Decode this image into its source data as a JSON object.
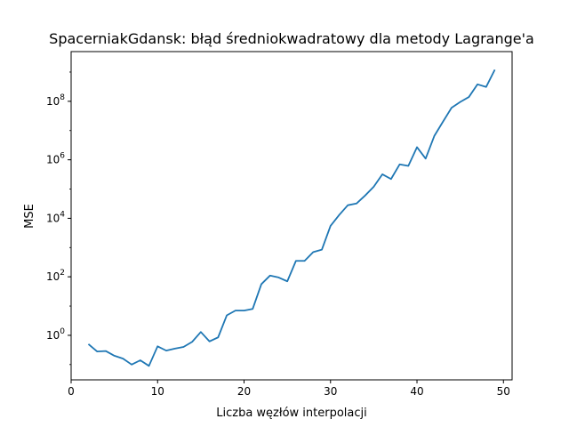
{
  "chart_data": {
    "type": "line",
    "title": "SpacerniakGdansk: błąd średniokwadratowy dla metody Lagrange'a",
    "xlabel": "Liczba węzłów interpolacji",
    "ylabel": "MSE",
    "xlim": [
      0,
      51
    ],
    "ylim": [
      0.03,
      5000000000
    ],
    "yscale": "log",
    "x_ticks": [
      0,
      10,
      20,
      30,
      40,
      50
    ],
    "y_ticks": [
      {
        "value": 1,
        "base": "10",
        "exp": "0"
      },
      {
        "value": 100,
        "base": "10",
        "exp": "2"
      },
      {
        "value": 10000,
        "base": "10",
        "exp": "4"
      },
      {
        "value": 1000000,
        "base": "10",
        "exp": "6"
      },
      {
        "value": 100000000,
        "base": "10",
        "exp": "8"
      }
    ],
    "grid": false,
    "legend": "none",
    "series": [
      {
        "color": "#1f77b4",
        "x": [
          2,
          3,
          4,
          5,
          6,
          7,
          8,
          9,
          10,
          11,
          12,
          13,
          14,
          15,
          16,
          17,
          18,
          19,
          20,
          21,
          22,
          23,
          24,
          25,
          26,
          27,
          28,
          29,
          30,
          31,
          32,
          33,
          34,
          35,
          36,
          37,
          38,
          39,
          40,
          41,
          42,
          43,
          44,
          45,
          46,
          47,
          48,
          49
        ],
        "values": [
          0.5,
          0.28,
          0.29,
          0.2,
          0.16,
          0.1,
          0.14,
          0.09,
          0.42,
          0.3,
          0.35,
          0.4,
          0.6,
          1.3,
          0.62,
          0.85,
          4.8,
          7,
          7,
          8,
          56,
          110,
          95,
          70,
          350,
          350,
          700,
          850,
          5500,
          13000,
          28000,
          32000,
          60000,
          120000,
          320000,
          220000,
          700000,
          620000,
          2700000,
          1100000,
          6500000,
          20000000,
          60000000,
          95000000,
          140000000,
          380000000,
          310000000,
          1200000000
        ]
      }
    ]
  }
}
